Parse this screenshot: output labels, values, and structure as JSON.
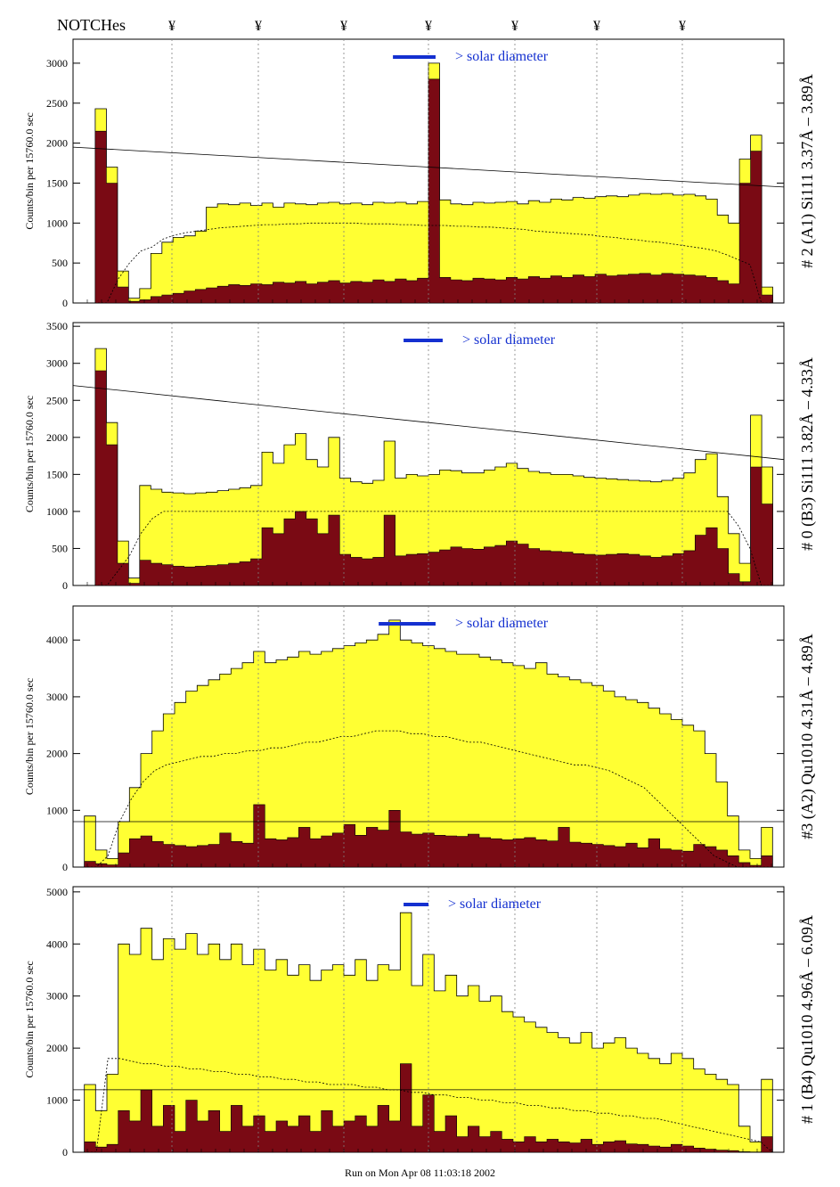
{
  "header": {
    "notches_label": "NOTCHes",
    "notch_symbol": "¥"
  },
  "footer": {
    "run_label": "Run on Mon Apr 08 11:03:18 2002"
  },
  "colors": {
    "fill_total": "#ffff33",
    "fill_low": "#7a0a14",
    "line": "#000000",
    "solar_bar": "#1430d0",
    "notch_line": "#808080"
  },
  "chart_data": [
    {
      "type": "area",
      "right_label": "# 2 (A1) Si111  3.37Å – 3.89Å",
      "ylabel": "Counts/bin per  15760.0 sec",
      "ylim": [
        0,
        3300
      ],
      "yticks": [
        0,
        500,
        1000,
        1500,
        2000,
        2500,
        3000
      ],
      "annotation": "> solar diameter",
      "series": [
        {
          "values": [
            0,
            0,
            2430,
            1700,
            400,
            60,
            180,
            620,
            760,
            820,
            840,
            900,
            1200,
            1240,
            1230,
            1250,
            1220,
            1250,
            1200,
            1250,
            1240,
            1230,
            1250,
            1260,
            1240,
            1250,
            1230,
            1260,
            1250,
            1260,
            1240,
            1270,
            3000,
            1290,
            1240,
            1230,
            1260,
            1250,
            1260,
            1270,
            1240,
            1280,
            1260,
            1300,
            1290,
            1320,
            1310,
            1330,
            1340,
            1330,
            1350,
            1370,
            1360,
            1370,
            1350,
            1360,
            1340,
            1300,
            1100,
            1000,
            1800,
            2100,
            200,
            0
          ]
        },
        {
          "values": [
            0,
            0,
            2150,
            1500,
            200,
            20,
            40,
            80,
            100,
            120,
            150,
            170,
            190,
            210,
            230,
            220,
            240,
            230,
            260,
            250,
            270,
            240,
            260,
            280,
            250,
            270,
            260,
            290,
            270,
            300,
            280,
            310,
            2800,
            320,
            290,
            280,
            310,
            300,
            290,
            320,
            300,
            330,
            310,
            340,
            320,
            350,
            330,
            360,
            340,
            350,
            360,
            370,
            350,
            370,
            360,
            350,
            340,
            320,
            280,
            240,
            1500,
            1900,
            100,
            0
          ]
        },
        {
          "values": [
            0,
            0,
            0,
            0,
            300,
            500,
            650,
            700,
            800,
            850,
            880,
            900,
            920,
            940,
            950,
            960,
            970,
            980,
            980,
            990,
            990,
            1000,
            1000,
            1000,
            1000,
            1000,
            990,
            990,
            990,
            980,
            980,
            970,
            970,
            970,
            960,
            960,
            950,
            950,
            940,
            930,
            920,
            900,
            890,
            880,
            870,
            860,
            850,
            830,
            820,
            800,
            790,
            770,
            760,
            740,
            720,
            700,
            680,
            650,
            600,
            540,
            480,
            0,
            0,
            0
          ]
        },
        {
          "values": [
            1950,
            1900,
            1850,
            1800,
            1750,
            1700,
            1650,
            1600,
            1550,
            1500,
            1450
          ]
        }
      ],
      "solar_diameter_bar": [
        0.45,
        0.51
      ]
    },
    {
      "type": "area",
      "right_label": "# 0 (B3) Si111  3.82Å – 4.33Å",
      "ylabel": "Counts/bin per  15760.0 sec",
      "ylim": [
        0,
        3550
      ],
      "yticks": [
        0,
        500,
        1000,
        1500,
        2000,
        2500,
        3000,
        3500
      ],
      "annotation": "> solar diameter",
      "series": [
        {
          "values": [
            0,
            0,
            3200,
            2200,
            600,
            100,
            1350,
            1300,
            1260,
            1250,
            1240,
            1250,
            1260,
            1280,
            1300,
            1320,
            1350,
            1800,
            1650,
            1900,
            2050,
            1700,
            1600,
            2000,
            1450,
            1400,
            1380,
            1420,
            1950,
            1450,
            1500,
            1480,
            1500,
            1560,
            1550,
            1520,
            1520,
            1560,
            1600,
            1650,
            1580,
            1540,
            1520,
            1500,
            1500,
            1480,
            1460,
            1450,
            1440,
            1430,
            1420,
            1410,
            1400,
            1420,
            1450,
            1520,
            1700,
            1780,
            1200,
            700,
            300,
            2300,
            1600,
            0
          ]
        },
        {
          "values": [
            0,
            0,
            2900,
            1900,
            300,
            30,
            340,
            300,
            280,
            260,
            250,
            260,
            270,
            280,
            300,
            320,
            360,
            780,
            700,
            900,
            1000,
            900,
            700,
            950,
            420,
            380,
            360,
            380,
            950,
            400,
            420,
            430,
            450,
            480,
            520,
            500,
            490,
            520,
            540,
            600,
            560,
            500,
            470,
            460,
            450,
            430,
            420,
            410,
            420,
            430,
            420,
            400,
            380,
            400,
            430,
            470,
            680,
            780,
            500,
            160,
            50,
            1600,
            1100,
            0
          ]
        },
        {
          "values": [
            0,
            0,
            0,
            0,
            200,
            400,
            700,
            900,
            1000,
            1000,
            1000,
            1000,
            1000,
            1000,
            1000,
            1000,
            1000,
            1000,
            1000,
            1000,
            1000,
            1000,
            1000,
            1000,
            1000,
            1000,
            1000,
            1000,
            1000,
            1000,
            1000,
            1000,
            1000,
            1000,
            1000,
            1000,
            1000,
            1000,
            1000,
            1000,
            1000,
            1000,
            1000,
            1000,
            1000,
            1000,
            1000,
            1000,
            1000,
            1000,
            1000,
            1000,
            1000,
            1000,
            1000,
            1000,
            1000,
            1000,
            1000,
            800,
            500,
            0,
            0,
            0
          ]
        },
        {
          "values": [
            2700,
            2600,
            2500,
            2400,
            2300,
            2200,
            2100,
            2000,
            1900,
            1800,
            1700
          ]
        }
      ],
      "solar_diameter_bar": [
        0.465,
        0.52
      ]
    },
    {
      "type": "area",
      "right_label": "#3 (A2) Qu1010  4.31Å – 4.89Å",
      "ylabel": "Counts/bin per  15760.0 sec",
      "ylim": [
        0,
        4600
      ],
      "yticks": [
        0,
        1000,
        2000,
        3000,
        4000
      ],
      "annotation": "> solar diameter",
      "series": [
        {
          "values": [
            0,
            900,
            300,
            150,
            800,
            1400,
            2000,
            2400,
            2700,
            2900,
            3100,
            3200,
            3300,
            3400,
            3500,
            3600,
            3800,
            3600,
            3650,
            3700,
            3800,
            3750,
            3800,
            3850,
            3900,
            3950,
            4000,
            4100,
            4350,
            4000,
            3950,
            3900,
            3850,
            3800,
            3750,
            3750,
            3700,
            3650,
            3600,
            3550,
            3500,
            3600,
            3400,
            3350,
            3300,
            3250,
            3200,
            3100,
            3000,
            2950,
            2900,
            2800,
            2700,
            2600,
            2500,
            2400,
            2000,
            1500,
            900,
            300,
            150,
            700,
            0
          ]
        },
        {
          "values": [
            0,
            100,
            60,
            40,
            250,
            500,
            550,
            450,
            400,
            380,
            360,
            380,
            400,
            600,
            450,
            420,
            1100,
            500,
            480,
            520,
            700,
            500,
            550,
            600,
            750,
            560,
            700,
            650,
            1000,
            620,
            580,
            600,
            560,
            550,
            540,
            580,
            520,
            500,
            480,
            500,
            520,
            480,
            460,
            700,
            440,
            420,
            400,
            380,
            360,
            420,
            340,
            500,
            320,
            300,
            280,
            400,
            360,
            300,
            200,
            80,
            30,
            200,
            0
          ]
        },
        {
          "values": [
            0,
            0,
            0,
            200,
            800,
            1200,
            1500,
            1700,
            1800,
            1850,
            1900,
            1950,
            1950,
            2000,
            2000,
            2050,
            2050,
            2100,
            2100,
            2150,
            2200,
            2200,
            2250,
            2300,
            2300,
            2350,
            2400,
            2400,
            2400,
            2350,
            2350,
            2300,
            2300,
            2250,
            2200,
            2200,
            2150,
            2100,
            2050,
            2000,
            1950,
            1900,
            1850,
            1800,
            1800,
            1750,
            1700,
            1600,
            1500,
            1400,
            1200,
            1000,
            800,
            600,
            400,
            200,
            100,
            0,
            0,
            0,
            0,
            0
          ]
        },
        {
          "values": [
            800,
            800
          ]
        }
      ],
      "solar_diameter_bar": [
        0.43,
        0.51
      ]
    },
    {
      "type": "area",
      "right_label": "# 1 (B4) Qu1010 4.96Å – 6.09Å",
      "ylabel": "Counts/bin per  15760.0 sec",
      "ylim": [
        0,
        5100
      ],
      "yticks": [
        0,
        1000,
        2000,
        3000,
        4000,
        5000
      ],
      "annotation": "> solar diameter",
      "series": [
        {
          "values": [
            0,
            1300,
            800,
            1500,
            4000,
            3800,
            4300,
            3700,
            4100,
            3900,
            4200,
            3800,
            4000,
            3700,
            4000,
            3600,
            3900,
            3500,
            3700,
            3400,
            3600,
            3300,
            3500,
            3600,
            3400,
            3700,
            3300,
            3600,
            3500,
            4600,
            3200,
            3800,
            3100,
            3400,
            3000,
            3200,
            2900,
            3000,
            2700,
            2600,
            2500,
            2400,
            2300,
            2200,
            2100,
            2300,
            2000,
            2100,
            2200,
            2000,
            1900,
            1800,
            1700,
            1900,
            1800,
            1600,
            1500,
            1400,
            1300,
            500,
            200,
            1400,
            0
          ]
        },
        {
          "values": [
            0,
            200,
            100,
            150,
            800,
            600,
            1200,
            500,
            900,
            400,
            1000,
            600,
            800,
            400,
            900,
            500,
            700,
            400,
            600,
            500,
            700,
            400,
            800,
            500,
            600,
            700,
            500,
            900,
            600,
            1700,
            500,
            1100,
            400,
            700,
            300,
            500,
            300,
            400,
            250,
            200,
            300,
            200,
            250,
            200,
            180,
            250,
            150,
            200,
            220,
            160,
            150,
            120,
            100,
            150,
            120,
            80,
            60,
            40,
            30,
            10,
            5,
            300,
            0
          ]
        },
        {
          "values": [
            0,
            0,
            0,
            1800,
            1800,
            1750,
            1700,
            1700,
            1650,
            1650,
            1600,
            1600,
            1550,
            1550,
            1500,
            1500,
            1450,
            1450,
            1400,
            1400,
            1350,
            1350,
            1300,
            1300,
            1300,
            1250,
            1250,
            1200,
            1200,
            1150,
            1150,
            1100,
            1100,
            1050,
            1050,
            1000,
            1000,
            950,
            950,
            900,
            900,
            850,
            850,
            800,
            800,
            750,
            750,
            700,
            700,
            650,
            650,
            600,
            550,
            500,
            450,
            400,
            350,
            300,
            250,
            200,
            0,
            0
          ]
        },
        {
          "values": [
            1200,
            1200
          ]
        }
      ],
      "solar_diameter_bar": [
        0.465,
        0.5
      ]
    }
  ]
}
